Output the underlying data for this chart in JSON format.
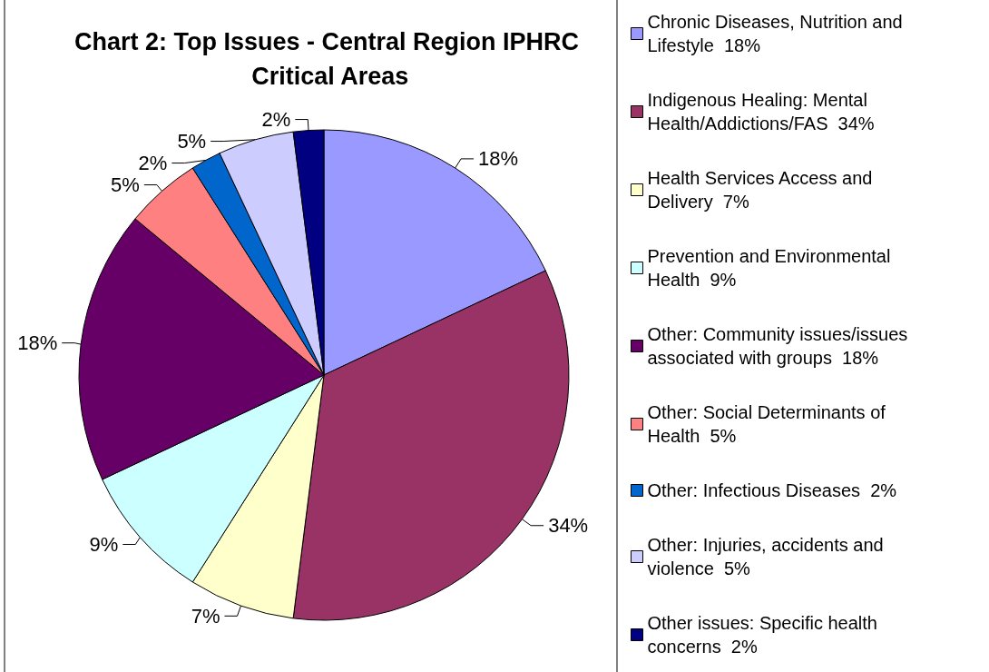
{
  "chart_data": {
    "type": "pie",
    "title": "Chart 2: Top Issues - Central Region IPHRC Critical Areas",
    "categories": [
      "Chronic Diseases, Nutrition and Lifestyle  18%",
      "Indigenous Healing: Mental Health/Addictions/FAS  34%",
      "Health Services Access and Delivery  7%",
      "Prevention and Environmental Health  9%",
      "Other: Community issues/issues associated with groups  18%",
      "Other: Social Determinants of Health  5%",
      "Other: Infectious Diseases  2%",
      "Other: Injuries, accidents and violence  5%",
      "Other issues: Specific health concerns  2%"
    ],
    "values": [
      18,
      34,
      7,
      9,
      18,
      5,
      2,
      5,
      2
    ],
    "value_labels": [
      "18%",
      "34%",
      "7%",
      "9%",
      "18%",
      "5%",
      "2%",
      "5%",
      "2%"
    ],
    "colors": [
      "#9999ff",
      "#993366",
      "#ffffcc",
      "#ccffff",
      "#660066",
      "#ff8080",
      "#0066cc",
      "#ccccff",
      "#000080"
    ],
    "legend": "right"
  }
}
